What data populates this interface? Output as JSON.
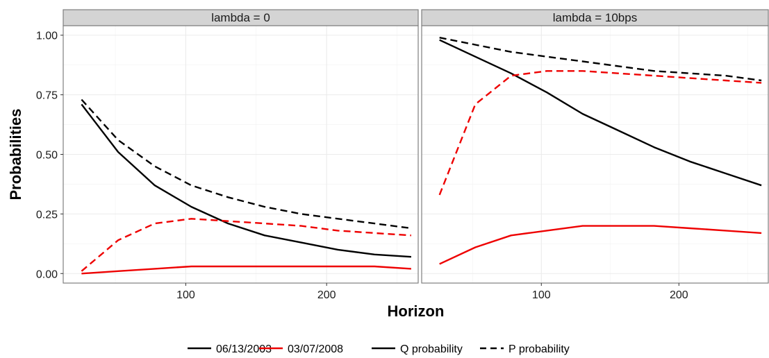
{
  "chart_data": {
    "type": "line",
    "xlabel": "Horizon",
    "ylabel": "Probabilities",
    "xlim": [
      13,
      265
    ],
    "ylim": [
      -0.04,
      1.04
    ],
    "x_ticks": [
      100,
      200
    ],
    "y_ticks": [
      0,
      0.25,
      0.5,
      0.75,
      1.0
    ],
    "y_tick_labels": [
      "0.00",
      "0.25",
      "0.50",
      "0.75",
      "1.00"
    ],
    "grid": true,
    "legend_position": "bottom",
    "colors": {
      "06/13/2003": "#000000",
      "03/07/2008": "#ee0000",
      "strip_bg": "#d4d4d4",
      "grid": "#ebebeb"
    },
    "legend": [
      {
        "label": "06/13/2003",
        "color": "#000000",
        "linetype": "solid"
      },
      {
        "label": "03/07/2008",
        "color": "#ee0000",
        "linetype": "solid"
      },
      {
        "label": "Q probability",
        "color": "#000000",
        "linetype": "solid"
      },
      {
        "label": "P probability",
        "color": "#000000",
        "linetype": "dashed"
      }
    ],
    "x": [
      26,
      52,
      78,
      104,
      130,
      156,
      182,
      208,
      234,
      260
    ],
    "panels": [
      {
        "strip": "lambda = 0",
        "series": [
          {
            "date": "06/13/2003",
            "measure": "Q probability",
            "values": [
              0.71,
              0.51,
              0.37,
              0.28,
              0.21,
              0.16,
              0.13,
              0.1,
              0.08,
              0.07
            ]
          },
          {
            "date": "06/13/2003",
            "measure": "P probability",
            "values": [
              0.73,
              0.56,
              0.45,
              0.37,
              0.32,
              0.28,
              0.25,
              0.23,
              0.21,
              0.19
            ]
          },
          {
            "date": "03/07/2008",
            "measure": "Q probability",
            "values": [
              0.0,
              0.01,
              0.02,
              0.03,
              0.03,
              0.03,
              0.03,
              0.03,
              0.03,
              0.02
            ]
          },
          {
            "date": "03/07/2008",
            "measure": "P probability",
            "values": [
              0.01,
              0.14,
              0.21,
              0.23,
              0.22,
              0.21,
              0.2,
              0.18,
              0.17,
              0.16
            ]
          }
        ]
      },
      {
        "strip": "lambda = 10bps",
        "series": [
          {
            "date": "06/13/2003",
            "measure": "Q probability",
            "values": [
              0.98,
              0.91,
              0.84,
              0.76,
              0.67,
              0.6,
              0.53,
              0.47,
              0.42,
              0.37
            ]
          },
          {
            "date": "06/13/2003",
            "measure": "P probability",
            "values": [
              0.99,
              0.96,
              0.93,
              0.91,
              0.89,
              0.87,
              0.85,
              0.84,
              0.83,
              0.81
            ]
          },
          {
            "date": "03/07/2008",
            "measure": "Q probability",
            "values": [
              0.04,
              0.11,
              0.16,
              0.18,
              0.2,
              0.2,
              0.2,
              0.19,
              0.18,
              0.17
            ]
          },
          {
            "date": "03/07/2008",
            "measure": "P probability",
            "values": [
              0.33,
              0.71,
              0.83,
              0.85,
              0.85,
              0.84,
              0.83,
              0.82,
              0.81,
              0.8
            ]
          }
        ]
      }
    ]
  }
}
